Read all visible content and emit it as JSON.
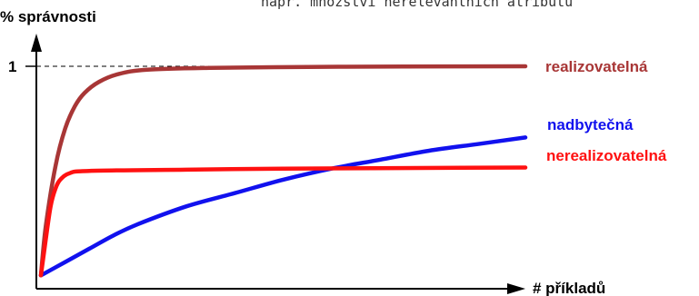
{
  "top_note": "např. množství nerelevantních atributů",
  "chart_data": {
    "type": "line",
    "title": "",
    "ylabel": "% správnosti",
    "xlabel": "# příkladů",
    "ytick_label": "1",
    "ylim": [
      0,
      1.2
    ],
    "xlim": [
      0,
      100
    ],
    "grid": false,
    "legend": "labels at line ends (right)",
    "series": [
      {
        "name": "realizovatelná",
        "color": "#a83636",
        "points": [
          [
            0,
            0.06
          ],
          [
            1,
            0.28
          ],
          [
            3,
            0.55
          ],
          [
            5,
            0.72
          ],
          [
            7,
            0.82
          ],
          [
            9,
            0.88
          ],
          [
            12,
            0.93
          ],
          [
            16,
            0.965
          ],
          [
            22,
            0.985
          ],
          [
            35,
            0.993
          ],
          [
            55,
            0.997
          ],
          [
            75,
            0.999
          ],
          [
            100,
            1.0
          ]
        ]
      },
      {
        "name": "nadbytečná",
        "color": "#1111ee",
        "points": [
          [
            0,
            0.06
          ],
          [
            5,
            0.12
          ],
          [
            10,
            0.18
          ],
          [
            15,
            0.24
          ],
          [
            20,
            0.29
          ],
          [
            30,
            0.37
          ],
          [
            40,
            0.43
          ],
          [
            50,
            0.49
          ],
          [
            60,
            0.54
          ],
          [
            70,
            0.58
          ],
          [
            80,
            0.62
          ],
          [
            90,
            0.65
          ],
          [
            100,
            0.68
          ]
        ]
      },
      {
        "name": "nerealizovatelná",
        "color": "#ff1111",
        "points": [
          [
            0,
            0.06
          ],
          [
            1,
            0.22
          ],
          [
            2,
            0.37
          ],
          [
            3,
            0.45
          ],
          [
            4,
            0.49
          ],
          [
            6,
            0.52
          ],
          [
            10,
            0.53
          ],
          [
            30,
            0.535
          ],
          [
            50,
            0.54
          ],
          [
            100,
            0.545
          ]
        ]
      }
    ]
  }
}
